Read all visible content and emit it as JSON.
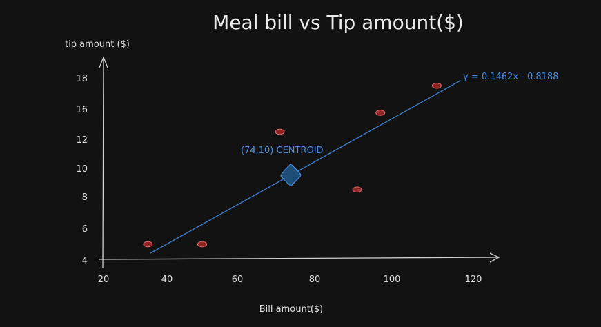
{
  "chart_data": {
    "type": "scatter",
    "title": "Meal bill vs Tip amount($)",
    "xlabel": "Bill amount($)",
    "ylabel": "tip amount ($)",
    "x_ticks": [
      {
        "label": "20",
        "value": 20
      },
      {
        "label": "40",
        "value": 40
      },
      {
        "label": "60",
        "value": 60
      },
      {
        "label": "80",
        "value": 80
      },
      {
        "label": "100",
        "value": 100
      },
      {
        "label": "120",
        "value": 120
      }
    ],
    "y_ticks": [
      {
        "label": "4",
        "value": 4
      },
      {
        "label": "6",
        "value": 6
      },
      {
        "label": "8",
        "value": 8
      },
      {
        "label": "10",
        "value": 10
      },
      {
        "label": "12",
        "value": 12
      },
      {
        "label": "16",
        "value": 16
      },
      {
        "label": "18",
        "value": 18
      }
    ],
    "points": [
      {
        "x": 34,
        "y": 5
      },
      {
        "x": 50,
        "y": 5
      },
      {
        "x": 71,
        "y": 13
      },
      {
        "x": 91,
        "y": 8.5
      },
      {
        "x": 97,
        "y": 15.5
      },
      {
        "x": 111,
        "y": 17.5
      }
    ],
    "trendline": {
      "equation": "y = 0.1462x - 0.8188",
      "x_start": 36,
      "x_end": 115
    },
    "centroid": {
      "label": "(74,10) CENTROID",
      "x": 74,
      "y": 10
    },
    "colors": {
      "background": "#121212",
      "axis": "#d0d0d0",
      "text": "#e6e6e6",
      "point_fill": "#8e2424",
      "point_stroke": "#e06a6a",
      "trendline": "#3d7dc8",
      "centroid_fill": "#1f4e79",
      "centroid_stroke": "#4a90e2",
      "annotation": "#4a90e2"
    }
  }
}
